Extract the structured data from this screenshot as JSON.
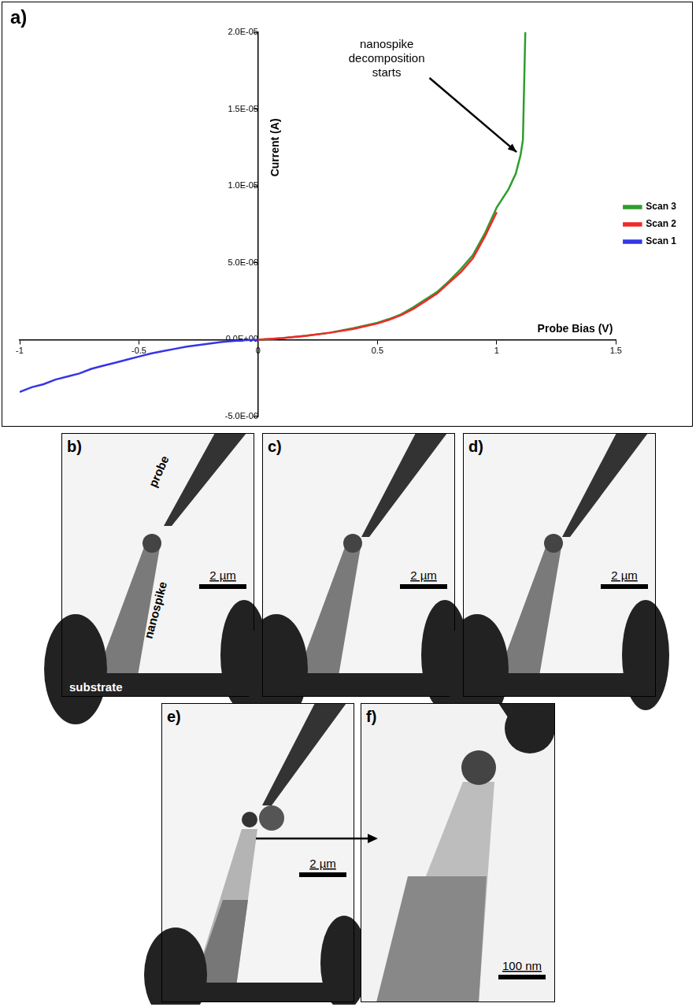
{
  "chart_data": {
    "type": "line",
    "panel": "a)",
    "x_label": "Probe Bias (V)",
    "y_label": "Current (A)",
    "xlim": [
      -1,
      1.5
    ],
    "xticks": [
      -1,
      -0.5,
      0,
      0.5,
      1,
      1.5
    ],
    "ylim": [
      -5e-06,
      2e-05
    ],
    "yticks": [
      {
        "value": -5e-06,
        "label": "-5.0E-06"
      },
      {
        "value": 0,
        "label": "0.0E+00"
      },
      {
        "value": 5e-06,
        "label": "5.0E-06"
      },
      {
        "value": 1e-05,
        "label": "1.0E-05"
      },
      {
        "value": 1.5e-05,
        "label": "1.5E-05"
      },
      {
        "value": 2e-05,
        "label": "2.0E-05"
      }
    ],
    "grid": false,
    "legend": "right",
    "series": [
      {
        "name": "Scan 1",
        "color": "#3535e8",
        "x": [
          -1,
          -0.95,
          -0.9,
          -0.85,
          -0.8,
          -0.75,
          -0.7,
          -0.65,
          -0.6,
          -0.55,
          -0.5,
          -0.45,
          -0.4,
          -0.35,
          -0.3,
          -0.25,
          -0.2,
          -0.15,
          -0.1,
          -0.05,
          0
        ],
        "values": [
          -3.4e-06,
          -3.1e-06,
          -2.9e-06,
          -2.6e-06,
          -2.4e-06,
          -2.2e-06,
          -1.9e-06,
          -1.7e-06,
          -1.5e-06,
          -1.3e-06,
          -1.1e-06,
          -9e-07,
          -7.5e-07,
          -6e-07,
          -4.5e-07,
          -3.5e-07,
          -2.5e-07,
          -1.5e-07,
          -8e-08,
          -3e-08,
          0
        ]
      },
      {
        "name": "Scan 2",
        "color": "#f02a2a",
        "x": [
          0,
          0.1,
          0.2,
          0.3,
          0.4,
          0.5,
          0.55,
          0.6,
          0.65,
          0.7,
          0.75,
          0.8,
          0.85,
          0.9,
          0.95,
          1.0
        ],
        "values": [
          0,
          1e-07,
          2.5e-07,
          4.5e-07,
          7e-07,
          1.05e-06,
          1.3e-06,
          1.6e-06,
          2e-06,
          2.5e-06,
          3e-06,
          3.7e-06,
          4.4e-06,
          5.3e-06,
          6.7e-06,
          8.3e-06
        ]
      },
      {
        "name": "Scan 3",
        "color": "#2e9e2e",
        "x": [
          0,
          0.1,
          0.2,
          0.3,
          0.4,
          0.5,
          0.55,
          0.6,
          0.65,
          0.7,
          0.75,
          0.8,
          0.85,
          0.9,
          0.95,
          1.0,
          1.05,
          1.08,
          1.1,
          1.11,
          1.12
        ],
        "values": [
          0,
          1e-07,
          2.5e-07,
          4.5e-07,
          7.5e-07,
          1.1e-06,
          1.35e-06,
          1.65e-06,
          2.1e-06,
          2.6e-06,
          3.1e-06,
          3.8e-06,
          4.6e-06,
          5.5e-06,
          6.9e-06,
          8.6e-06,
          9.8e-06,
          1.08e-05,
          1.2e-05,
          1.3e-05,
          2e-05
        ]
      }
    ],
    "annotations": [
      {
        "text": "nanospike decomposition starts",
        "x": 1.1,
        "y": 1.2e-05
      }
    ]
  },
  "image_panels": [
    {
      "label": "b)",
      "texts": [
        "probe",
        "nanospike",
        "substrate"
      ],
      "scale_bar": "2 µm"
    },
    {
      "label": "c)",
      "scale_bar": "2 µm"
    },
    {
      "label": "d)",
      "scale_bar": "2 µm"
    },
    {
      "label": "e)",
      "scale_bar": "2 µm"
    },
    {
      "label": "f)",
      "scale_bar": "100 nm"
    }
  ]
}
